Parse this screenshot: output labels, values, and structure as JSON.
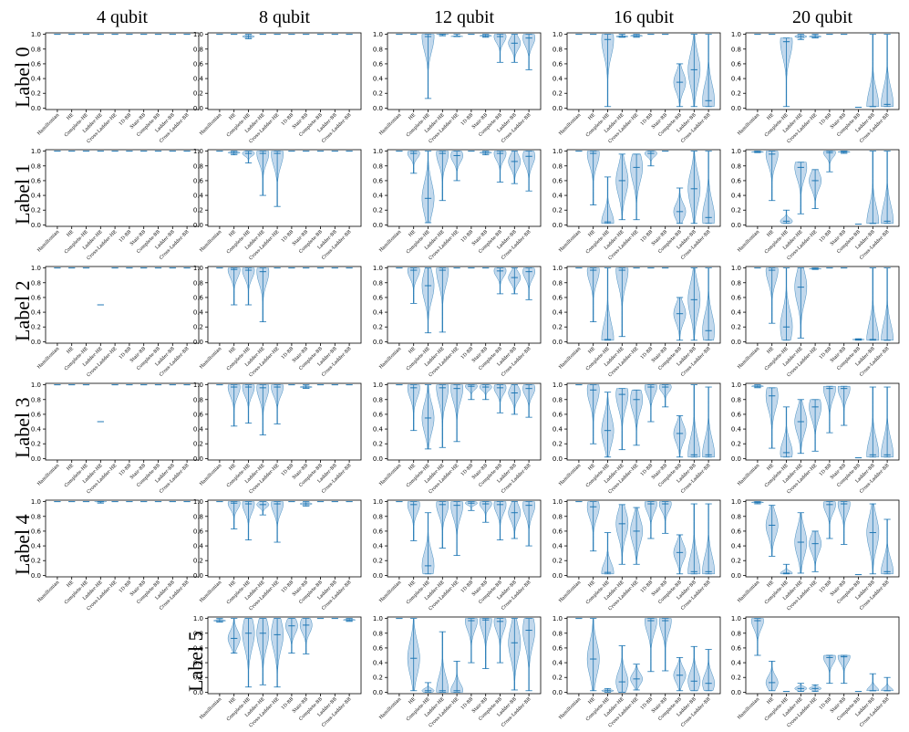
{
  "columns": [
    "4 qubit",
    "8 qubit",
    "12 qubit",
    "16 qubit",
    "20 qubit"
  ],
  "rows": [
    "Label 0",
    "Label 1",
    "Label 2",
    "Label 3",
    "Label 4",
    "Label 5"
  ],
  "colors": {
    "violin_fill": "#aecbe6",
    "violin_line": "#1f77b4",
    "axis": "#000000"
  },
  "chart_data": {
    "type": "violin",
    "ylim": [
      -0.02,
      1.02
    ],
    "yticks": [
      "0.0",
      "0.2",
      "0.4",
      "0.6",
      "0.8",
      "1.0"
    ],
    "categories": [
      "Hamiltonian",
      "HE",
      "Complete-HE",
      "Ladder-HE",
      "Cross-Ladder-HE",
      "1D-BB",
      "Stair-BB",
      "Complete-BB",
      "Ladder-BB",
      "Cross-Ladder-BB"
    ],
    "panels": [
      {
        "qubits": "4 qubit",
        "label": "Label 0",
        "medians": [
          1,
          1,
          1,
          1,
          1,
          1,
          1,
          1,
          1,
          1
        ],
        "lows": [
          1,
          1,
          1,
          1,
          1,
          1,
          1,
          1,
          1,
          1
        ],
        "highs": [
          1,
          1,
          1,
          1,
          1,
          1,
          1,
          1,
          1,
          1
        ]
      },
      {
        "qubits": "4 qubit",
        "label": "Label 1",
        "medians": [
          1,
          1,
          1,
          1,
          1,
          1,
          1,
          1,
          1,
          1
        ],
        "lows": [
          1,
          1,
          1,
          1,
          1,
          1,
          1,
          1,
          1,
          1
        ],
        "highs": [
          1,
          1,
          1,
          1,
          1,
          1,
          1,
          1,
          1,
          1
        ]
      },
      {
        "qubits": "4 qubit",
        "label": "Label 2",
        "medians": [
          1,
          1,
          1,
          0.5,
          1,
          1,
          1,
          1,
          1,
          1
        ],
        "lows": [
          1,
          1,
          1,
          0.5,
          1,
          1,
          1,
          1,
          1,
          1
        ],
        "highs": [
          1,
          1,
          1,
          0.5,
          1,
          1,
          1,
          1,
          1,
          1
        ]
      },
      {
        "qubits": "4 qubit",
        "label": "Label 3",
        "medians": [
          1,
          1,
          1,
          0.5,
          1,
          1,
          1,
          1,
          1,
          1
        ],
        "lows": [
          1,
          1,
          1,
          0.5,
          1,
          1,
          1,
          1,
          1,
          1
        ],
        "highs": [
          1,
          1,
          1,
          0.5,
          1,
          1,
          1,
          1,
          1,
          1
        ]
      },
      {
        "qubits": "4 qubit",
        "label": "Label 4",
        "medians": [
          1,
          1,
          1,
          1,
          1,
          1,
          1,
          1,
          1,
          1
        ],
        "lows": [
          1,
          1,
          1,
          0.98,
          1,
          1,
          1,
          1,
          1,
          1
        ],
        "highs": [
          1,
          1,
          1,
          1,
          1,
          1,
          1,
          1,
          1,
          1
        ]
      },
      {
        "qubits": "8 qubit",
        "label": "Label 0",
        "medians": [
          1,
          1,
          0.97,
          1,
          1,
          1,
          1,
          1,
          1,
          1
        ],
        "lows": [
          1,
          1,
          0.94,
          1,
          1,
          1,
          1,
          1,
          1,
          1
        ],
        "highs": [
          1,
          1,
          1,
          1,
          1,
          1,
          1,
          1,
          1,
          1
        ]
      },
      {
        "qubits": "8 qubit",
        "label": "Label 1",
        "medians": [
          1,
          0.98,
          0.97,
          0.97,
          0.97,
          1,
          1,
          1,
          1,
          1
        ],
        "lows": [
          1,
          0.95,
          0.84,
          0.4,
          0.25,
          1,
          1,
          1,
          1,
          1
        ],
        "highs": [
          1,
          1,
          1,
          1,
          1,
          1,
          1,
          1,
          1,
          1
        ]
      },
      {
        "qubits": "8 qubit",
        "label": "Label 2",
        "medians": [
          1,
          0.98,
          0.97,
          0.95,
          1,
          1,
          1,
          1,
          1,
          1
        ],
        "lows": [
          1,
          0.5,
          0.5,
          0.27,
          1,
          1,
          1,
          1,
          1,
          1
        ],
        "highs": [
          1,
          1,
          1,
          1,
          1,
          1,
          1,
          1,
          1,
          1
        ]
      },
      {
        "qubits": "8 qubit",
        "label": "Label 3",
        "medians": [
          1,
          0.97,
          0.97,
          0.96,
          0.97,
          1,
          0.97,
          1,
          1,
          1
        ],
        "lows": [
          1,
          0.44,
          0.48,
          0.32,
          0.47,
          1,
          0.95,
          1,
          1,
          1
        ],
        "highs": [
          1,
          1,
          1,
          1,
          1,
          1,
          1,
          1,
          1,
          1
        ]
      },
      {
        "qubits": "8 qubit",
        "label": "Label 4",
        "medians": [
          1,
          0.98,
          0.97,
          0.96,
          0.97,
          1,
          0.97,
          1,
          1,
          1
        ],
        "lows": [
          1,
          0.63,
          0.48,
          0.82,
          0.45,
          1,
          0.94,
          1,
          1,
          1
        ],
        "highs": [
          1,
          1,
          1,
          1,
          1,
          1,
          1,
          1,
          1,
          1
        ]
      },
      {
        "qubits": "8 qubit",
        "label": "Label 5",
        "medians": [
          0.97,
          0.73,
          0.8,
          0.8,
          0.78,
          0.9,
          0.91,
          1,
          1,
          0.98
        ],
        "lows": [
          0.95,
          0.53,
          0.07,
          0.1,
          0.07,
          0.53,
          0.52,
          1,
          1,
          0.96
        ],
        "highs": [
          1,
          1,
          1,
          1,
          1,
          1,
          1,
          1,
          1,
          1
        ]
      },
      {
        "qubits": "12 qubit",
        "label": "Label 0",
        "medians": [
          1,
          1,
          0.97,
          1,
          0.97,
          1,
          0.98,
          0.97,
          0.88,
          0.95
        ],
        "lows": [
          1,
          1,
          0.13,
          0.98,
          0.97,
          1,
          0.96,
          0.62,
          0.62,
          0.52
        ],
        "highs": [
          1,
          1,
          1,
          1,
          1,
          1,
          1,
          1,
          1,
          1
        ]
      },
      {
        "qubits": "12 qubit",
        "label": "Label 1",
        "medians": [
          1,
          0.97,
          0.36,
          0.97,
          0.94,
          1,
          0.98,
          0.97,
          0.86,
          0.93
        ],
        "lows": [
          1,
          0.7,
          0.03,
          0.33,
          0.6,
          1,
          0.95,
          0.58,
          0.56,
          0.46
        ],
        "highs": [
          1,
          1,
          1,
          1,
          1,
          1,
          1,
          1,
          1,
          1
        ]
      },
      {
        "qubits": "12 qubit",
        "label": "Label 2",
        "medians": [
          1,
          0.97,
          0.76,
          0.97,
          1,
          1,
          1,
          0.96,
          0.87,
          0.95
        ],
        "lows": [
          1,
          0.52,
          0.12,
          0.13,
          1,
          1,
          1,
          0.65,
          0.65,
          0.57
        ],
        "highs": [
          1,
          1,
          1,
          1,
          1,
          1,
          1,
          1,
          1,
          1
        ]
      },
      {
        "qubits": "12 qubit",
        "label": "Label 3",
        "medians": [
          1,
          0.96,
          0.55,
          0.96,
          0.95,
          0.98,
          0.97,
          0.96,
          0.89,
          0.95
        ],
        "lows": [
          1,
          0.38,
          0.13,
          0.15,
          0.23,
          0.8,
          0.8,
          0.62,
          0.6,
          0.56
        ],
        "highs": [
          1,
          1,
          1,
          1,
          1,
          1,
          1,
          1,
          1,
          1
        ]
      },
      {
        "qubits": "12 qubit",
        "label": "Label 4",
        "medians": [
          1,
          0.96,
          0.13,
          0.96,
          0.95,
          0.98,
          0.97,
          0.96,
          0.85,
          0.95
        ],
        "lows": [
          1,
          0.47,
          0.02,
          0.37,
          0.27,
          0.88,
          0.72,
          0.48,
          0.5,
          0.4
        ],
        "highs": [
          1,
          1,
          0.85,
          1,
          1,
          1,
          1,
          1,
          1,
          1
        ]
      },
      {
        "qubits": "12 qubit",
        "label": "Label 5",
        "medians": [
          1,
          0.46,
          0.02,
          0.02,
          0.02,
          0.97,
          0.98,
          0.96,
          0.67,
          0.84
        ],
        "lows": [
          1,
          0.02,
          0,
          0,
          0,
          0.4,
          0.32,
          0.4,
          0.03,
          0.02
        ],
        "highs": [
          1,
          1,
          0.13,
          0.82,
          0.42,
          1,
          1,
          1,
          1,
          1
        ]
      },
      {
        "qubits": "16 qubit",
        "label": "Label 0",
        "medians": [
          1,
          1,
          0.93,
          0.97,
          0.98,
          1,
          1,
          0.35,
          0.52,
          0.1
        ],
        "lows": [
          1,
          1,
          0.02,
          0.96,
          0.96,
          1,
          1,
          0.02,
          0.02,
          0.02
        ],
        "highs": [
          1,
          1,
          1,
          1,
          1,
          1,
          1,
          0.6,
          1,
          1
        ]
      },
      {
        "qubits": "16 qubit",
        "label": "Label 1",
        "medians": [
          1,
          0.97,
          0.04,
          0.6,
          0.78,
          0.97,
          1,
          0.18,
          0.49,
          0.1
        ],
        "lows": [
          1,
          0.27,
          0.02,
          0.07,
          0.07,
          0.8,
          1,
          0.02,
          0.02,
          0.02
        ],
        "highs": [
          1,
          1,
          0.65,
          0.96,
          0.96,
          1,
          1,
          0.5,
          1,
          1
        ]
      },
      {
        "qubits": "16 qubit",
        "label": "Label 2",
        "medians": [
          1,
          0.97,
          0.03,
          0.97,
          1,
          1,
          1,
          0.38,
          0.57,
          0.15
        ],
        "lows": [
          1,
          0.27,
          0.02,
          0.07,
          1,
          1,
          1,
          0.02,
          0.02,
          0.02
        ],
        "highs": [
          1,
          1,
          1,
          1,
          1,
          1,
          1,
          0.6,
          1,
          1
        ]
      },
      {
        "qubits": "16 qubit",
        "label": "Label 3",
        "medians": [
          1,
          0.93,
          0.38,
          0.87,
          0.8,
          0.97,
          0.97,
          0.34,
          0.05,
          0.05
        ],
        "lows": [
          1,
          0.2,
          0.02,
          0.12,
          0.18,
          0.5,
          0.7,
          0.02,
          0.02,
          0.02
        ],
        "highs": [
          1,
          1,
          0.9,
          0.95,
          0.93,
          1,
          1,
          0.58,
          1,
          0.97
        ]
      },
      {
        "qubits": "16 qubit",
        "label": "Label 4",
        "medians": [
          1,
          0.93,
          0.04,
          0.7,
          0.6,
          0.97,
          0.97,
          0.31,
          0.05,
          0.05
        ],
        "lows": [
          1,
          0.33,
          0.02,
          0.15,
          0.15,
          0.5,
          0.57,
          0.02,
          0.02,
          0.02
        ],
        "highs": [
          1,
          1,
          0.58,
          0.96,
          0.92,
          1,
          1,
          0.55,
          0.97,
          0.97
        ]
      },
      {
        "qubits": "16 qubit",
        "label": "Label 5",
        "medians": [
          1,
          0.45,
          0.02,
          0.14,
          0.18,
          0.97,
          0.97,
          0.23,
          0.15,
          0.12
        ],
        "lows": [
          1,
          0.02,
          0,
          0,
          0.03,
          0.28,
          0.29,
          0.02,
          0.02,
          0.02
        ],
        "highs": [
          1,
          1,
          0.05,
          0.63,
          0.38,
          1,
          1,
          0.47,
          0.62,
          0.58
        ]
      },
      {
        "qubits": "20 qubit",
        "label": "Label 0",
        "medians": [
          1,
          1,
          0.9,
          0.97,
          0.97,
          1,
          1,
          0.01,
          0.02,
          0.05
        ],
        "lows": [
          1,
          1,
          0.02,
          0.93,
          0.95,
          1,
          1,
          0.01,
          0.02,
          0.02
        ],
        "highs": [
          1,
          1,
          0.95,
          1,
          1,
          1,
          1,
          0.01,
          1,
          1
        ]
      },
      {
        "qubits": "20 qubit",
        "label": "Label 1",
        "medians": [
          0.99,
          0.96,
          0.05,
          0.78,
          0.6,
          0.98,
          0.99,
          0.01,
          0.02,
          0.05
        ],
        "lows": [
          0.98,
          0.33,
          0.02,
          0.15,
          0.22,
          0.72,
          0.97,
          0.01,
          0.02,
          0.02
        ],
        "highs": [
          1,
          1,
          0.2,
          0.85,
          0.75,
          1,
          1,
          0.01,
          1,
          1
        ]
      },
      {
        "qubits": "20 qubit",
        "label": "Label 2",
        "medians": [
          1,
          0.97,
          0.2,
          0.74,
          0.99,
          1,
          1,
          0.03,
          0.03,
          0.02
        ],
        "lows": [
          1,
          0.25,
          0.02,
          0.05,
          0.98,
          1,
          1,
          0.02,
          0.02,
          0.02
        ],
        "highs": [
          1,
          1,
          1,
          1,
          1,
          1,
          1,
          0.04,
          1,
          1
        ]
      },
      {
        "qubits": "20 qubit",
        "label": "Label 3",
        "medians": [
          0.98,
          0.85,
          0.08,
          0.5,
          0.7,
          0.95,
          0.95,
          0.01,
          0.05,
          0.05
        ],
        "lows": [
          0.96,
          0.14,
          0.02,
          0.07,
          0.1,
          0.35,
          0.45,
          0.01,
          0.02,
          0.02
        ],
        "highs": [
          1,
          0.96,
          0.7,
          0.8,
          0.8,
          0.98,
          0.98,
          0.01,
          0.97,
          0.97
        ]
      },
      {
        "qubits": "20 qubit",
        "label": "Label 4",
        "medians": [
          0.99,
          0.68,
          0.03,
          0.45,
          0.43,
          0.96,
          0.97,
          0.01,
          0.58,
          0.05
        ],
        "lows": [
          0.97,
          0.26,
          0.02,
          0.03,
          0.05,
          0.5,
          0.42,
          0.01,
          0.02,
          0.02
        ],
        "highs": [
          1,
          0.95,
          0.15,
          0.85,
          0.6,
          1,
          1,
          0.01,
          0.97,
          0.76
        ]
      },
      {
        "qubits": "20 qubit",
        "label": "Label 5",
        "medians": [
          0.97,
          0.13,
          0.01,
          0.05,
          0.05,
          0.47,
          0.48,
          0.01,
          0.02,
          0.02
        ],
        "lows": [
          0.5,
          0.02,
          0.01,
          0.01,
          0.01,
          0.12,
          0.12,
          0.01,
          0.02,
          0.02
        ],
        "highs": [
          1,
          0.42,
          0.02,
          0.12,
          0.1,
          0.5,
          0.5,
          0.01,
          0.25,
          0.2
        ]
      }
    ]
  }
}
